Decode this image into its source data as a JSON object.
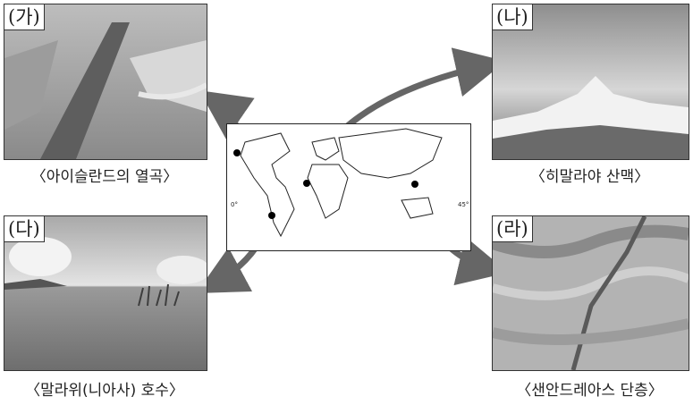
{
  "panels": {
    "ga": {
      "tag": "(가)",
      "caption": "〈아이슬란드의 열곡〉"
    },
    "na": {
      "tag": "(나)",
      "caption": "〈히말라야 산맥〉"
    },
    "da": {
      "tag": "(다)",
      "caption": "〈말라위(니아사) 호수〉"
    },
    "ra": {
      "tag": "(라)",
      "caption": "〈샌안드레아스 단층〉"
    }
  },
  "map": {
    "left_tick": "0°",
    "right_tick": "45°"
  }
}
